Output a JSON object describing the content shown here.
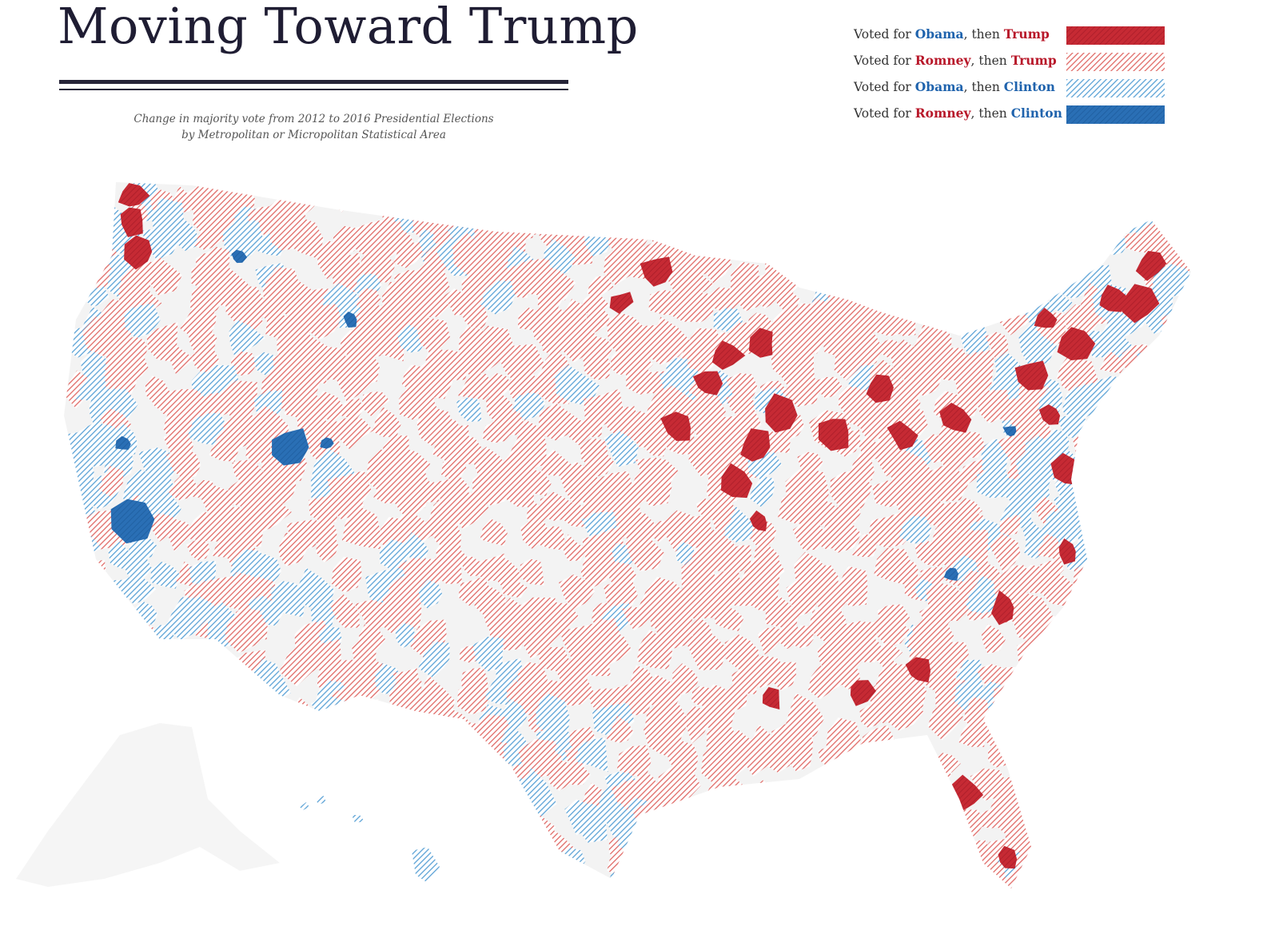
{
  "title": "Moving Toward Trump",
  "subtitle_line1": "Change in majority vote from 2012 to 2016 Presidential Elections",
  "subtitle_line2": "by Metropolitan or Micropolitan Statistical Area",
  "legend": [
    {
      "prefix": "Voted for ",
      "first": "Obama",
      "first_color": "blue",
      "middle": ", then ",
      "second": "Trump",
      "second_color": "red",
      "fill": "#c62a34",
      "style": "solid"
    },
    {
      "prefix": "Voted for ",
      "first": "Romney",
      "first_color": "red",
      "middle": ", then ",
      "second": "Trump",
      "second_color": "red",
      "fill": "#e06a66",
      "style": "hatched"
    },
    {
      "prefix": "Voted for ",
      "first": "Obama",
      "first_color": "blue",
      "middle": ", then ",
      "second": "Clinton",
      "second_color": "blue",
      "fill": "#5aa2d6",
      "style": "hatched"
    },
    {
      "prefix": "Voted for ",
      "first": "Romney",
      "first_color": "red",
      "middle": ", then ",
      "second": "Clinton",
      "second_color": "blue",
      "fill": "#2a6fb5",
      "style": "solid"
    }
  ],
  "colors": {
    "land": "#f3f3f3",
    "text_red": "#b8182a",
    "text_blue": "#1f63ad"
  }
}
